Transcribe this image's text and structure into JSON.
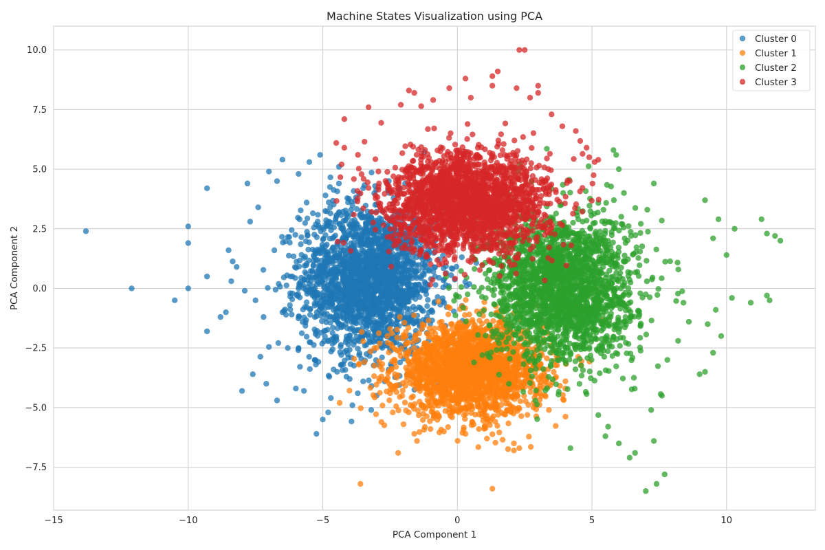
{
  "chart_data": {
    "type": "scatter",
    "title": "Machine States Visualization using PCA",
    "xlabel": "PCA Component 1",
    "ylabel": "PCA Component 2",
    "xlim": [
      -15.0,
      13.3
    ],
    "ylim": [
      -9.3,
      11.0
    ],
    "xticks": [
      -15,
      -10,
      -5,
      0,
      5,
      10
    ],
    "xtick_labels": [
      "−15",
      "−10",
      "−5",
      "0",
      "5",
      "10"
    ],
    "yticks": [
      -7.5,
      -5.0,
      -2.5,
      0.0,
      2.5,
      5.0,
      7.5,
      10.0
    ],
    "ytick_labels": [
      "−7.5",
      "−5.0",
      "−2.5",
      "0.0",
      "2.5",
      "5.0",
      "7.5",
      "10.0"
    ],
    "grid": true,
    "legend_position": "top-right",
    "series": [
      {
        "name": "Cluster 0",
        "color": "#1f77b4",
        "points": [
          [
            -13.8,
            2.4
          ],
          [
            -12.1,
            0.0
          ],
          [
            -10.5,
            -0.5
          ],
          [
            -10.0,
            2.6
          ],
          [
            -10.0,
            1.9
          ],
          [
            -10.0,
            0.0
          ],
          [
            -9.3,
            4.2
          ],
          [
            -9.3,
            0.5
          ],
          [
            -9.3,
            -1.8
          ],
          [
            -8.8,
            -1.2
          ],
          [
            -8.5,
            1.6
          ],
          [
            -8.4,
            0.3
          ],
          [
            -8.0,
            -4.3
          ],
          [
            -7.8,
            4.4
          ],
          [
            -7.7,
            2.8
          ],
          [
            -7.6,
            -3.6
          ],
          [
            -7.4,
            3.4
          ],
          [
            -7.1,
            -4.0
          ],
          [
            -7.0,
            4.9
          ],
          [
            -6.7,
            4.5
          ],
          [
            -6.7,
            -4.7
          ],
          [
            -6.5,
            5.4
          ],
          [
            -6.3,
            -2.5
          ],
          [
            -6.0,
            -4.2
          ],
          [
            -5.9,
            4.8
          ],
          [
            -5.7,
            -4.3
          ],
          [
            -5.5,
            5.3
          ],
          [
            -5.1,
            5.6
          ],
          [
            -5.0,
            -5.5
          ],
          [
            -4.8,
            -5.2
          ],
          [
            -4.7,
            -4.6
          ],
          [
            -4.4,
            5.1
          ],
          [
            -3.9,
            -4.9
          ],
          [
            -3.7,
            -4.4
          ],
          [
            -3.5,
            -3.9
          ],
          [
            -3.2,
            -5.1
          ],
          [
            -3.0,
            -4.5
          ],
          [
            -8.6,
            -1.0
          ],
          [
            -8.2,
            0.9
          ],
          [
            -7.9,
            -0.1
          ],
          [
            -7.5,
            -0.5
          ],
          [
            -7.2,
            -1.2
          ],
          [
            -6.8,
            1.6
          ],
          [
            -6.5,
            -1.0
          ],
          [
            -6.2,
            0.5
          ],
          [
            -5.9,
            -2.5
          ],
          [
            -5.6,
            3.6
          ],
          [
            -5.3,
            -3.0
          ],
          [
            -4.9,
            3.9
          ],
          [
            -4.6,
            -3.4
          ],
          [
            -4.4,
            4.4
          ],
          [
            -4.0,
            -3.8
          ],
          [
            -3.5,
            4.2
          ],
          [
            -2.7,
            -3.9
          ]
        ],
        "core": {
          "cx": -3.3,
          "cy": 0.4,
          "sx": 1.25,
          "sy": 1.55,
          "n": 2200
        }
      },
      {
        "name": "Cluster 1",
        "color": "#ff7f0e",
        "points": [
          [
            -3.6,
            -8.2
          ],
          [
            1.3,
            -8.4
          ],
          [
            -2.2,
            -6.9
          ],
          [
            -1.5,
            -6.4
          ],
          [
            -1.6,
            -6.1
          ],
          [
            2.1,
            -6.8
          ],
          [
            2.3,
            -6.7
          ],
          [
            2.1,
            -6.5
          ],
          [
            1.1,
            -6.3
          ],
          [
            0.3,
            -6.1
          ],
          [
            -1.0,
            -5.9
          ],
          [
            -2.5,
            -4.4
          ],
          [
            -2.6,
            -2.0
          ],
          [
            -2.5,
            -1.7
          ],
          [
            -3.0,
            -2.5
          ],
          [
            -2.8,
            -3.4
          ],
          [
            -2.4,
            -5.2
          ],
          [
            -2.0,
            -5.7
          ],
          [
            3.4,
            -5.1
          ],
          [
            2.9,
            -4.9
          ],
          [
            -0.5,
            -6.0
          ],
          [
            0.8,
            -5.9
          ]
        ],
        "core": {
          "cx": 0.5,
          "cy": -3.4,
          "sx": 1.35,
          "sy": 0.95,
          "n": 2200
        }
      },
      {
        "name": "Cluster 2",
        "color": "#2ca02c",
        "points": [
          [
            12.0,
            2.0
          ],
          [
            11.8,
            2.2
          ],
          [
            11.5,
            2.3
          ],
          [
            11.3,
            2.9
          ],
          [
            11.5,
            -0.3
          ],
          [
            11.6,
            -0.5
          ],
          [
            10.9,
            -0.6
          ],
          [
            10.3,
            2.5
          ],
          [
            10.2,
            -0.4
          ],
          [
            10.0,
            1.4
          ],
          [
            9.7,
            2.9
          ],
          [
            9.5,
            2.1
          ],
          [
            9.2,
            3.7
          ],
          [
            9.3,
            -1.5
          ],
          [
            9.5,
            -2.7
          ],
          [
            9.8,
            -2.0
          ],
          [
            9.0,
            -3.6
          ],
          [
            9.2,
            -3.5
          ],
          [
            9.6,
            -0.9
          ],
          [
            7.3,
            4.4
          ],
          [
            5.8,
            5.8
          ],
          [
            5.9,
            5.6
          ],
          [
            6.0,
            5.0
          ],
          [
            7.0,
            -8.5
          ],
          [
            7.4,
            -8.2
          ],
          [
            7.7,
            -7.8
          ],
          [
            6.4,
            -7.1
          ],
          [
            6.6,
            -6.9
          ],
          [
            7.3,
            -6.4
          ],
          [
            6.0,
            -6.5
          ],
          [
            5.6,
            -5.8
          ],
          [
            5.5,
            -6.2
          ],
          [
            4.2,
            -6.7
          ],
          [
            8.4,
            -0.6
          ],
          [
            8.6,
            -1.4
          ],
          [
            8.2,
            -2.2
          ],
          [
            7.8,
            -3.0
          ],
          [
            7.6,
            -4.5
          ],
          [
            7.2,
            -5.1
          ]
        ],
        "core": {
          "cx": 3.9,
          "cy": 0.0,
          "sx": 1.35,
          "sy": 1.55,
          "n": 2200
        }
      },
      {
        "name": "Cluster 3",
        "color": "#d62728",
        "points": [
          [
            2.3,
            10.0
          ],
          [
            2.5,
            10.0
          ],
          [
            1.5,
            9.1
          ],
          [
            1.3,
            8.9
          ],
          [
            1.3,
            8.5
          ],
          [
            0.3,
            8.8
          ],
          [
            2.2,
            8.4
          ],
          [
            3.0,
            8.5
          ],
          [
            3.0,
            8.2
          ],
          [
            -1.8,
            8.3
          ],
          [
            -1.6,
            8.2
          ],
          [
            -0.3,
            8.4
          ],
          [
            -3.3,
            7.6
          ],
          [
            -2.1,
            7.7
          ],
          [
            -4.2,
            7.1
          ],
          [
            -4.5,
            6.1
          ],
          [
            -4.2,
            5.9
          ],
          [
            -4.3,
            5.2
          ],
          [
            4.8,
            5.9
          ],
          [
            4.9,
            5.5
          ],
          [
            5.1,
            5.3
          ],
          [
            4.4,
            6.6
          ],
          [
            3.5,
            7.3
          ],
          [
            3.9,
            6.8
          ],
          [
            0.5,
            8.0
          ],
          [
            -0.9,
            7.9
          ],
          [
            2.7,
            8.0
          ]
        ],
        "core": {
          "cx": 0.4,
          "cy": 3.6,
          "sx": 1.5,
          "sy": 1.05,
          "n": 2200
        }
      }
    ]
  }
}
